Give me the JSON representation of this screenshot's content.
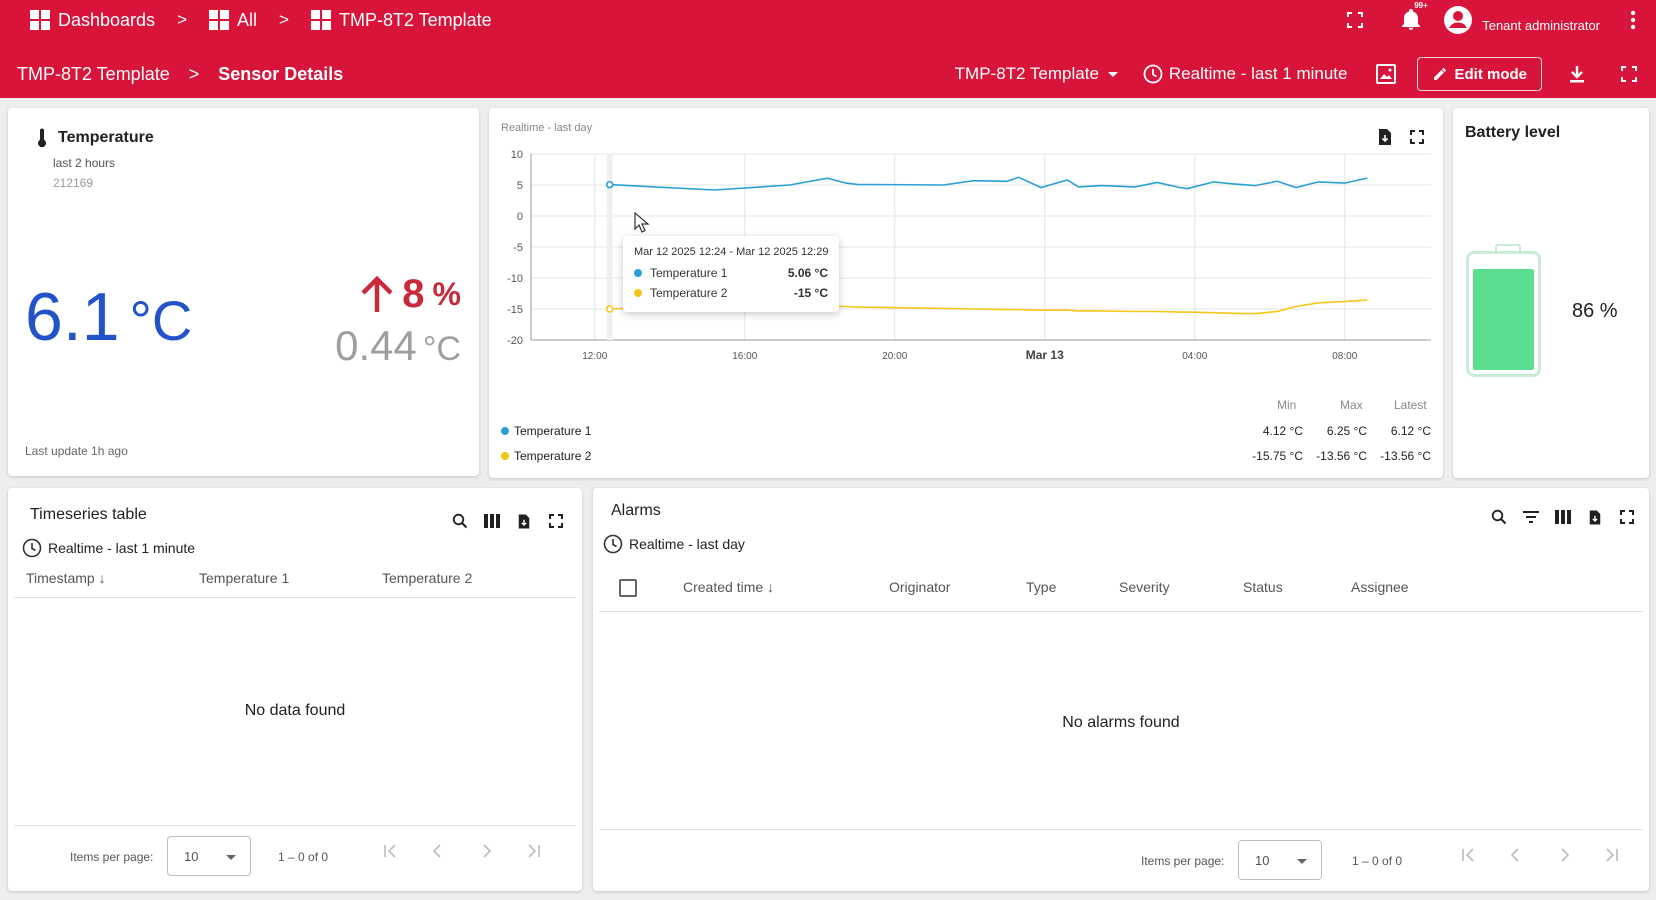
{
  "topbar": {
    "crumbs": [
      "Dashboards",
      "All",
      "TMP-8T2 Template"
    ],
    "separator": ">",
    "notifications_badge": "99+",
    "user_role": "Tenant administrator",
    "dashboard_title": "TMP-8T2 Template",
    "state_title": "Sensor Details",
    "dashboard_select": "TMP-8T2 Template",
    "timewindow": "Realtime - last 1 minute",
    "edit_mode_label": "Edit mode"
  },
  "temperature_card": {
    "title": "Temperature",
    "subtitle": "last 2 hours",
    "device_id": "212169",
    "value": "6.1",
    "unit": "°C",
    "delta_percent": "8",
    "delta_percent_unit": "%",
    "delta_abs": "0.44",
    "delta_abs_unit": "°C",
    "last_update": "Last update 1h ago",
    "value_color": "#2353c9",
    "delta_color": "#c92a3a"
  },
  "chart_card": {
    "timewindow_label": "Realtime - last day",
    "tooltip": {
      "header": "Mar 12 2025 12:24 - Mar 12 2025 12:29",
      "rows": [
        {
          "name": "Temperature 1",
          "value": "5.06 °C"
        },
        {
          "name": "Temperature 2",
          "value": "-15 °C"
        }
      ]
    },
    "legend_headers": [
      "Min",
      "Max",
      "Latest"
    ],
    "legend": [
      {
        "name": "Temperature 1",
        "min": "4.12 °C",
        "max": "6.25 °C",
        "latest": "6.12 °C",
        "color": "#29a0d6"
      },
      {
        "name": "Temperature 2",
        "min": "-15.75 °C",
        "max": "-13.56 °C",
        "latest": "-13.56 °C",
        "color": "#f5c518"
      }
    ]
  },
  "chart_data": {
    "type": "line",
    "title": "",
    "xlabel": "",
    "ylabel": "",
    "ylim": [
      -20,
      10
    ],
    "yticks": [
      "10",
      "5",
      "0",
      "-5",
      "-10",
      "-15",
      "-20"
    ],
    "yticks_values": [
      10,
      5,
      0,
      -5,
      -10,
      -15,
      -20
    ],
    "xticks": [
      "12:00",
      "16:00",
      "20:00",
      "Mar 13",
      "04:00",
      "08:00"
    ],
    "xticks_hours": [
      12,
      16,
      20,
      24,
      28,
      32
    ],
    "xlim_hours": [
      10.3,
      34.3
    ],
    "grid": true,
    "x_hours": [
      12.4,
      15.2,
      17.2,
      18.2,
      18.7,
      19.0,
      21.3,
      22.1,
      23.0,
      23.3,
      23.9,
      24.6,
      24.9,
      25.5,
      26.4,
      27.0,
      27.6,
      27.8,
      28.5,
      29.0,
      29.6,
      30.2,
      30.7,
      31.3,
      32.0,
      32.6
    ],
    "series": [
      {
        "name": "Temperature 1",
        "color": "#29a0d6",
        "values": [
          5.06,
          4.2,
          5.0,
          6.1,
          5.3,
          5.1,
          5.0,
          5.7,
          5.6,
          6.25,
          4.6,
          5.8,
          4.7,
          4.9,
          4.7,
          5.4,
          4.6,
          4.4,
          5.5,
          5.2,
          4.9,
          5.6,
          4.6,
          5.5,
          5.3,
          6.12
        ]
      },
      {
        "name": "Temperature 2",
        "color": "#f5c518",
        "values": [
          -15.0,
          -14.3,
          -14.4,
          -14.5,
          -14.6,
          -14.7,
          -14.9,
          -15.0,
          -15.1,
          -15.1,
          -15.2,
          -15.2,
          -15.3,
          -15.3,
          -15.4,
          -15.4,
          -15.5,
          -15.5,
          -15.6,
          -15.7,
          -15.75,
          -15.4,
          -14.6,
          -14.0,
          -13.8,
          -13.56
        ]
      }
    ]
  },
  "battery_card": {
    "title": "Battery level",
    "level": 86,
    "value_text": "86 %",
    "fill_color": "#5cde90"
  },
  "timeseries_table": {
    "title": "Timeseries table",
    "timewindow": "Realtime - last 1 minute",
    "columns": [
      "Timestamp",
      "Temperature 1",
      "Temperature 2"
    ],
    "sort_arrow": "↓",
    "empty": "No data found",
    "items_per_page_label": "Items per page:",
    "items_per_page": "10",
    "range": "1 – 0 of 0"
  },
  "alarms_table": {
    "title": "Alarms",
    "timewindow": "Realtime - last day",
    "columns": [
      "Created time",
      "Originator",
      "Type",
      "Severity",
      "Status",
      "Assignee"
    ],
    "sort_arrow": "↓",
    "empty": "No alarms found",
    "items_per_page_label": "Items per page:",
    "items_per_page": "10",
    "range": "1 – 0 of 0"
  }
}
